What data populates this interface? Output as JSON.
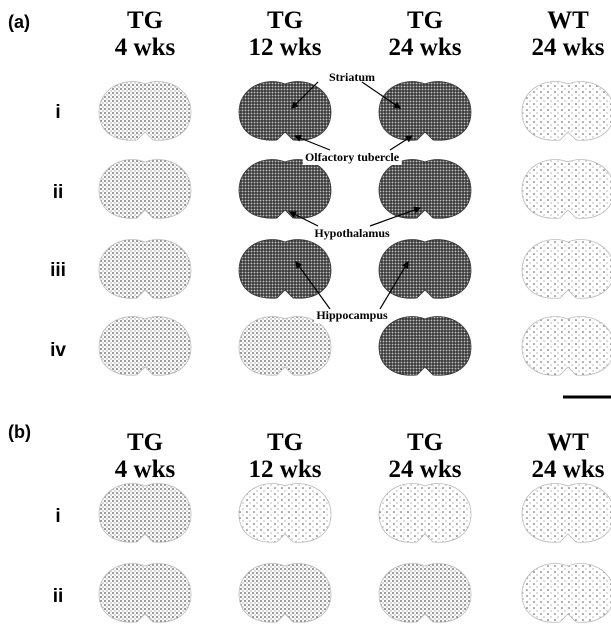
{
  "panels": [
    {
      "label": "(a)",
      "columns": [
        {
          "title": "TG",
          "subtitle": "4 wks"
        },
        {
          "title": "TG",
          "subtitle": "12 wks"
        },
        {
          "title": "TG",
          "subtitle": "24 wks"
        },
        {
          "title": "WT",
          "subtitle": "24 wks"
        }
      ],
      "rows": [
        "i",
        "ii",
        "iii",
        "iv"
      ],
      "annotations": [
        "Striatum",
        "Olfactory tubercle",
        "Hypothalamus",
        "Hippocampus"
      ]
    },
    {
      "label": "(b)",
      "columns": [
        {
          "title": "TG",
          "subtitle": "4 wks"
        },
        {
          "title": "TG",
          "subtitle": "12 wks"
        },
        {
          "title": "TG",
          "subtitle": "24 wks"
        },
        {
          "title": "WT",
          "subtitle": "24 wks"
        }
      ],
      "rows": [
        "i",
        "ii"
      ]
    }
  ]
}
